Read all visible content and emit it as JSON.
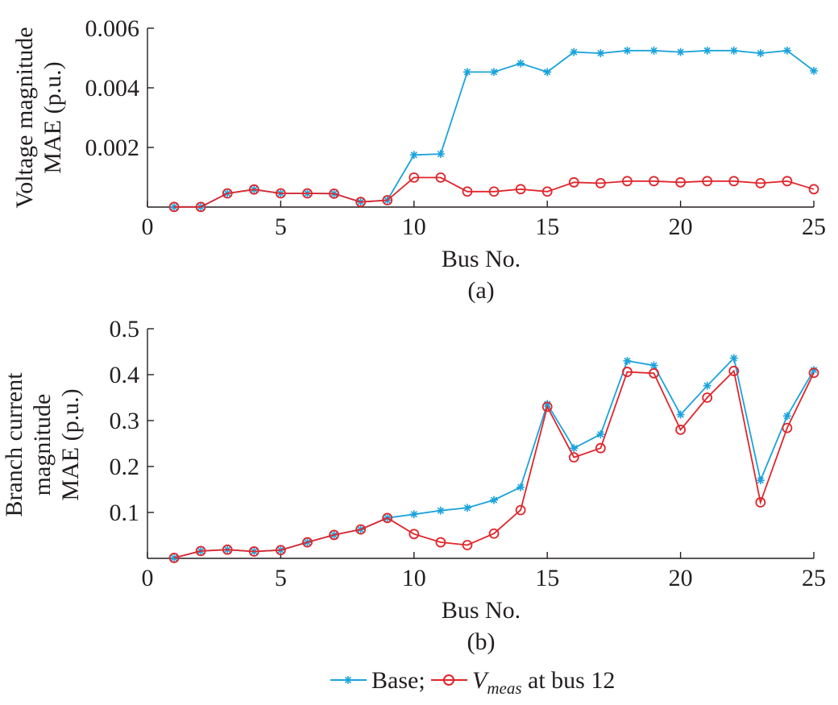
{
  "chart_data": [
    {
      "type": "line",
      "panel_label": "(a)",
      "xlabel": "Bus No.",
      "ylabel_lines": [
        "Voltage magnitude",
        "MAE (p.u.)"
      ],
      "xlim": [
        0,
        25
      ],
      "ylim": [
        0,
        0.006
      ],
      "xticks": [
        0,
        5,
        10,
        15,
        20,
        25
      ],
      "xtick_labels": [
        "0",
        "5",
        "10",
        "15",
        "20",
        "25"
      ],
      "yticks": [
        0.002,
        0.004,
        0.006
      ],
      "ytick_labels": [
        "0.002",
        "0.004",
        "0.006"
      ],
      "grid": false,
      "x": [
        1,
        2,
        3,
        4,
        5,
        6,
        7,
        8,
        9,
        10,
        11,
        12,
        13,
        14,
        15,
        16,
        17,
        18,
        19,
        20,
        21,
        22,
        23,
        24,
        25
      ],
      "series": [
        {
          "name": "Base",
          "color": "#1aa3dc",
          "marker": "asterisk",
          "values": [
            5e-06,
            5e-06,
            0.00046,
            0.00059,
            0.00046,
            0.00046,
            0.00045,
            0.00017,
            0.00023,
            0.00175,
            0.00178,
            0.00453,
            0.00453,
            0.00482,
            0.00453,
            0.0052,
            0.00516,
            0.00525,
            0.00525,
            0.0052,
            0.00525,
            0.00525,
            0.00516,
            0.00525,
            0.00457
          ]
        },
        {
          "name": "V_meas at bus 12",
          "color": "#e0262c",
          "marker": "circle",
          "values": [
            5e-06,
            5e-06,
            0.00046,
            0.00059,
            0.00046,
            0.00046,
            0.00045,
            0.00017,
            0.00023,
            0.00099,
            0.00099,
            0.00052,
            0.00052,
            0.0006,
            0.00052,
            0.00083,
            0.0008,
            0.00087,
            0.00087,
            0.00083,
            0.00087,
            0.00087,
            0.0008,
            0.00087,
            0.0006
          ]
        }
      ]
    },
    {
      "type": "line",
      "panel_label": "(b)",
      "xlabel": "Bus No.",
      "ylabel_lines": [
        "Branch current",
        "magnitude",
        "MAE (p.u.)"
      ],
      "xlim": [
        0,
        25
      ],
      "ylim": [
        0,
        0.5
      ],
      "xticks": [
        0,
        5,
        10,
        15,
        20,
        25
      ],
      "xtick_labels": [
        "0",
        "5",
        "10",
        "15",
        "20",
        "25"
      ],
      "yticks": [
        0.1,
        0.2,
        0.3,
        0.4,
        0.5
      ],
      "ytick_labels": [
        "0.1",
        "0.2",
        "0.3",
        "0.4",
        "0.5"
      ],
      "grid": false,
      "x": [
        1,
        2,
        3,
        4,
        5,
        6,
        7,
        8,
        9,
        10,
        11,
        12,
        13,
        14,
        15,
        16,
        17,
        18,
        19,
        20,
        21,
        22,
        23,
        24,
        25
      ],
      "series": [
        {
          "name": "Base",
          "color": "#1aa3dc",
          "marker": "asterisk",
          "values": [
            0.001,
            0.016,
            0.019,
            0.015,
            0.018,
            0.035,
            0.051,
            0.063,
            0.088,
            0.096,
            0.104,
            0.11,
            0.127,
            0.155,
            0.336,
            0.24,
            0.27,
            0.43,
            0.42,
            0.313,
            0.376,
            0.436,
            0.17,
            0.31,
            0.41
          ]
        },
        {
          "name": "V_meas at bus 12",
          "color": "#e0262c",
          "marker": "circle",
          "values": [
            0.001,
            0.016,
            0.019,
            0.015,
            0.018,
            0.035,
            0.051,
            0.063,
            0.088,
            0.053,
            0.035,
            0.029,
            0.054,
            0.105,
            0.33,
            0.22,
            0.24,
            0.406,
            0.403,
            0.28,
            0.35,
            0.408,
            0.122,
            0.284,
            0.404
          ]
        }
      ]
    }
  ],
  "legend": {
    "placement": "bottom-center",
    "items": [
      {
        "label": "Base;",
        "color": "#1aa3dc",
        "marker": "asterisk"
      },
      {
        "label_main": "V",
        "label_sub": "meas",
        "label_rest": " at bus 12",
        "color": "#e0262c",
        "marker": "circle"
      }
    ]
  }
}
